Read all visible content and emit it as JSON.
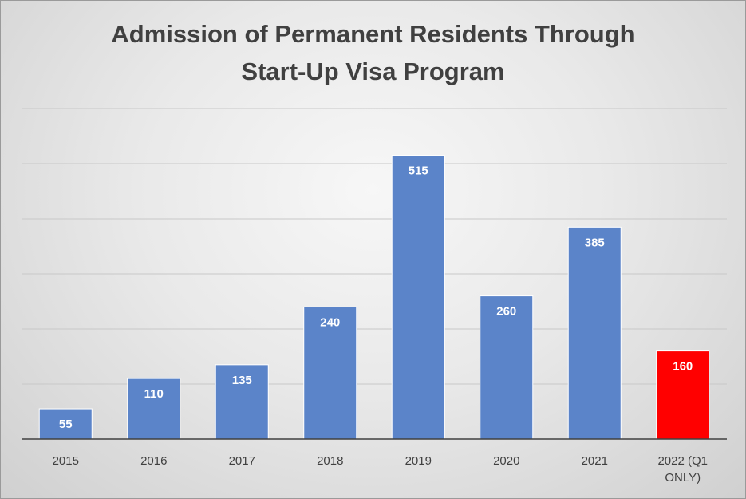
{
  "chart_data": {
    "type": "bar",
    "title_lines": [
      "Admission of Permanent Residents Through",
      "Start-Up Visa Program"
    ],
    "categories": [
      "2015",
      "2016",
      "2017",
      "2018",
      "2019",
      "2020",
      "2021",
      "2022 (Q1 ONLY)"
    ],
    "category_lines": [
      [
        "2015"
      ],
      [
        "2016"
      ],
      [
        "2017"
      ],
      [
        "2018"
      ],
      [
        "2019"
      ],
      [
        "2020"
      ],
      [
        "2021"
      ],
      [
        "2022 (Q1",
        "ONLY)"
      ]
    ],
    "values": [
      55,
      110,
      135,
      240,
      515,
      260,
      385,
      160
    ],
    "data_labels": [
      "55",
      "110",
      "135",
      "240",
      "515",
      "260",
      "385",
      "160"
    ],
    "ylim": [
      0,
      600
    ],
    "gridline_step": 100,
    "grid": true,
    "legend": "none",
    "xlabel": "",
    "ylabel": "",
    "colors": {
      "bar": "#5b84c9",
      "highlight_bar": "#ff0000",
      "highlight_index": 7,
      "gridline": "#c8c8c8",
      "axis": "#404040"
    }
  }
}
